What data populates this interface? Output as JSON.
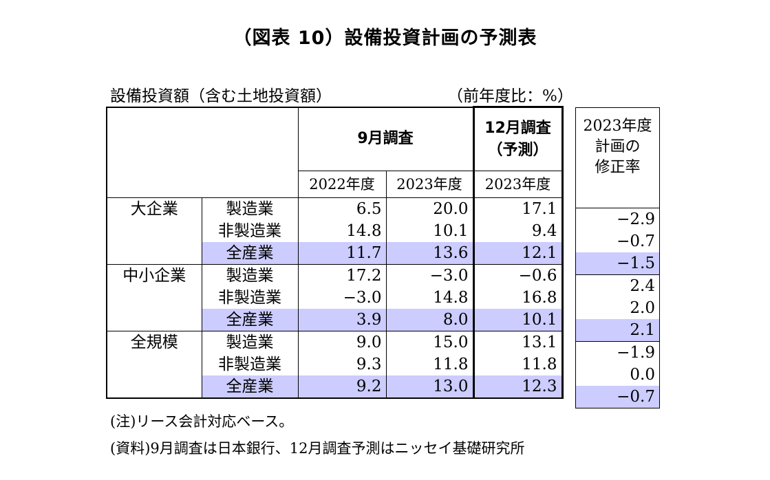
{
  "title": "（図表 10）設備投資計画の予測表",
  "caption_left": "設備投資額（含む土地投資額）",
  "caption_right": "（前年度比：%）",
  "header": {
    "sept_survey": "9月調査",
    "dec_survey_line1": "12月調査",
    "dec_survey_line2": "（予測）",
    "year_2022": "2022年度",
    "year_2023a": "2023年度",
    "year_2023b": "2023年度",
    "revision_line1": "2023年度",
    "revision_line2": "計画の",
    "revision_line3": "修正率"
  },
  "groups": [
    {
      "name": "大企業",
      "rows": [
        {
          "label": "製造業",
          "sep2022": "6.5",
          "sep2023": "20.0",
          "dec2023": "17.1",
          "revision": "-2.9",
          "highlight": false
        },
        {
          "label": "非製造業",
          "sep2022": "14.8",
          "sep2023": "10.1",
          "dec2023": "9.4",
          "revision": "-0.7",
          "highlight": false
        },
        {
          "label": "全産業",
          "sep2022": "11.7",
          "sep2023": "13.6",
          "dec2023": "12.1",
          "revision": "-1.5",
          "highlight": true
        }
      ]
    },
    {
      "name": "中小企業",
      "rows": [
        {
          "label": "製造業",
          "sep2022": "17.2",
          "sep2023": "-3.0",
          "dec2023": "-0.6",
          "revision": "2.4",
          "highlight": false
        },
        {
          "label": "非製造業",
          "sep2022": "-3.0",
          "sep2023": "14.8",
          "dec2023": "16.8",
          "revision": "2.0",
          "highlight": false
        },
        {
          "label": "全産業",
          "sep2022": "3.9",
          "sep2023": "8.0",
          "dec2023": "10.1",
          "revision": "2.1",
          "highlight": true
        }
      ]
    },
    {
      "name": "全規模",
      "rows": [
        {
          "label": "製造業",
          "sep2022": "9.0",
          "sep2023": "15.0",
          "dec2023": "13.1",
          "revision": "-1.9",
          "highlight": false
        },
        {
          "label": "非製造業",
          "sep2022": "9.3",
          "sep2023": "11.8",
          "dec2023": "11.8",
          "revision": "0.0",
          "highlight": false
        },
        {
          "label": "全産業",
          "sep2022": "9.2",
          "sep2023": "13.0",
          "dec2023": "12.3",
          "revision": "-0.7",
          "highlight": true
        }
      ]
    }
  ],
  "notes": {
    "note": "(注)リース会計対応ベース。",
    "source": "(資料)9月調査は日本銀行、12月調査予測はニッセイ基礎研究所"
  },
  "colors": {
    "highlight": "#ccccff",
    "border": "#000000"
  }
}
